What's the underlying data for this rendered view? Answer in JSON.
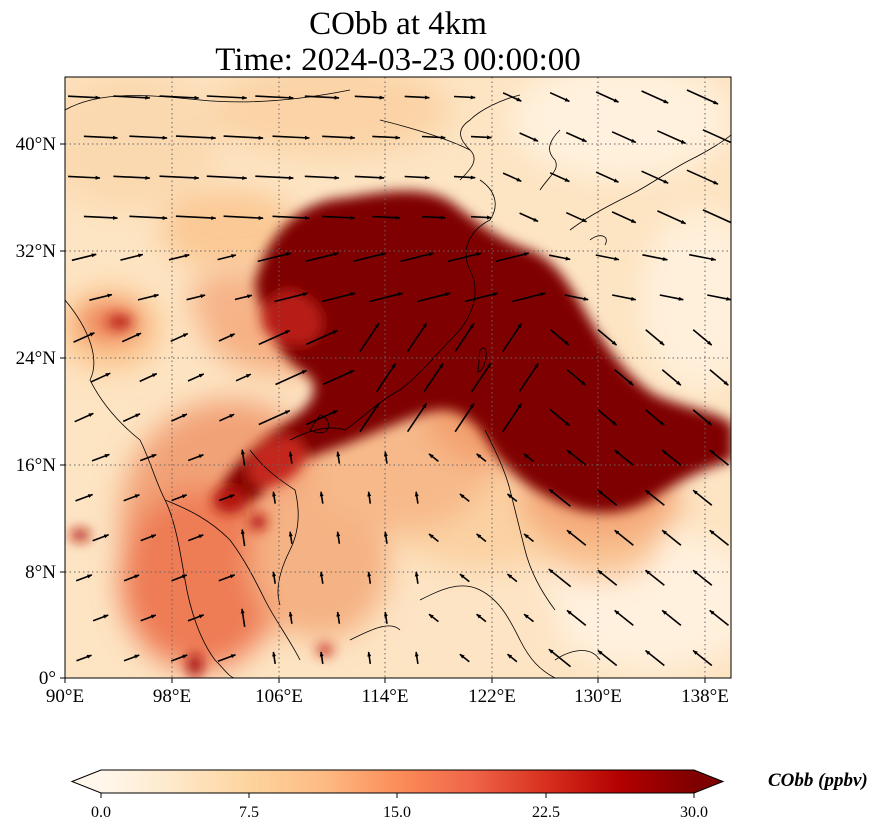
{
  "title": {
    "line1": "CObb at 4km",
    "line2": "Time: 2024-03-23 00:00:00"
  },
  "map": {
    "lon_range": [
      90,
      140
    ],
    "lat_range": [
      0,
      45
    ],
    "lon_ticks": [
      "90°E",
      "98°E",
      "106°E",
      "114°E",
      "122°E",
      "130°E",
      "138°E"
    ],
    "lat_ticks": [
      "0°",
      "8°N",
      "16°N",
      "24°N",
      "32°N",
      "40°N"
    ],
    "gridlines": "dotted",
    "vectors": "wind arrows",
    "colormap": "OrRd"
  },
  "colorbar": {
    "label": "CObb (ppbv)",
    "range": [
      0,
      30
    ],
    "ticks": [
      "0.0",
      "7.5",
      "15.0",
      "22.5",
      "30.0"
    ],
    "extend": "both",
    "colors": [
      "#fff7ec",
      "#fee8c8",
      "#fdd49e",
      "#fdbb84",
      "#fc8d59",
      "#ef6548",
      "#d7301f",
      "#b30000",
      "#7f0000"
    ]
  }
}
